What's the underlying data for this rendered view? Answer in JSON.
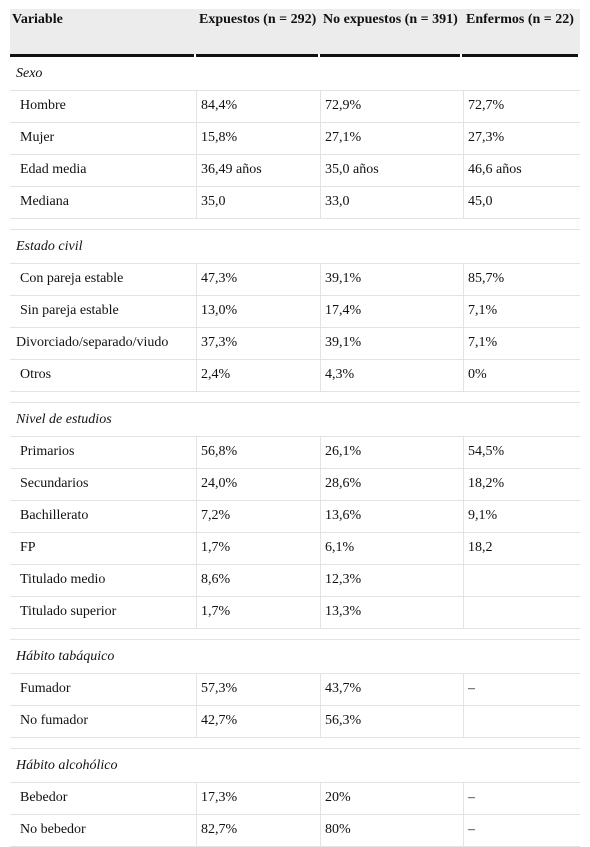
{
  "header": {
    "col1": "Variable",
    "col2": "Expuestos (n = 292)",
    "col3": "No expuestos (n = 391)",
    "col4": "Enfermos (n = 22)"
  },
  "sections": [
    {
      "title": "Sexo",
      "rows": [
        [
          "Hombre",
          "84,4%",
          "72,9%",
          "72,7%"
        ],
        [
          "Mujer",
          "15,8%",
          "27,1%",
          "27,3%"
        ],
        [
          "Edad media",
          "36,49 años",
          "35,0 años",
          "46,6 años"
        ],
        [
          "Mediana",
          "35,0",
          "33,0",
          "45,0"
        ]
      ]
    },
    {
      "title": "Estado civil",
      "rows": [
        [
          "Con pareja estable",
          "47,3%",
          "39,1%",
          "85,7%"
        ],
        [
          "Sin pareja estable",
          "13,0%",
          "17,4%",
          "7,1%"
        ],
        [
          "Divorciado/separado/viudo",
          "37,3%",
          "39,1%",
          "7,1%"
        ],
        [
          "Otros",
          "2,4%",
          "4,3%",
          "0%"
        ]
      ]
    },
    {
      "title": "Nivel de estudios",
      "rows": [
        [
          "Primarios",
          "56,8%",
          "26,1%",
          "54,5%"
        ],
        [
          "Secundarios",
          "24,0%",
          "28,6%",
          "18,2%"
        ],
        [
          "Bachillerato",
          "7,2%",
          "13,6%",
          "9,1%"
        ],
        [
          "FP",
          "1,7%",
          "6,1%",
          "18,2"
        ],
        [
          "Titulado medio",
          "8,6%",
          "12,3%",
          ""
        ],
        [
          "Titulado superior",
          "1,7%",
          "13,3%",
          ""
        ]
      ]
    },
    {
      "title": "Hábito tabáquico",
      "rows": [
        [
          "Fumador",
          "57,3%",
          "43,7%",
          "–"
        ],
        [
          "No fumador",
          "42,7%",
          "56,3%",
          ""
        ]
      ]
    },
    {
      "title": "Hábito alcohólico",
      "rows": [
        [
          "Bebedor",
          "17,3%",
          "20%",
          "–"
        ],
        [
          "No bebedor",
          "82,7%",
          "80%",
          "–"
        ]
      ]
    }
  ]
}
